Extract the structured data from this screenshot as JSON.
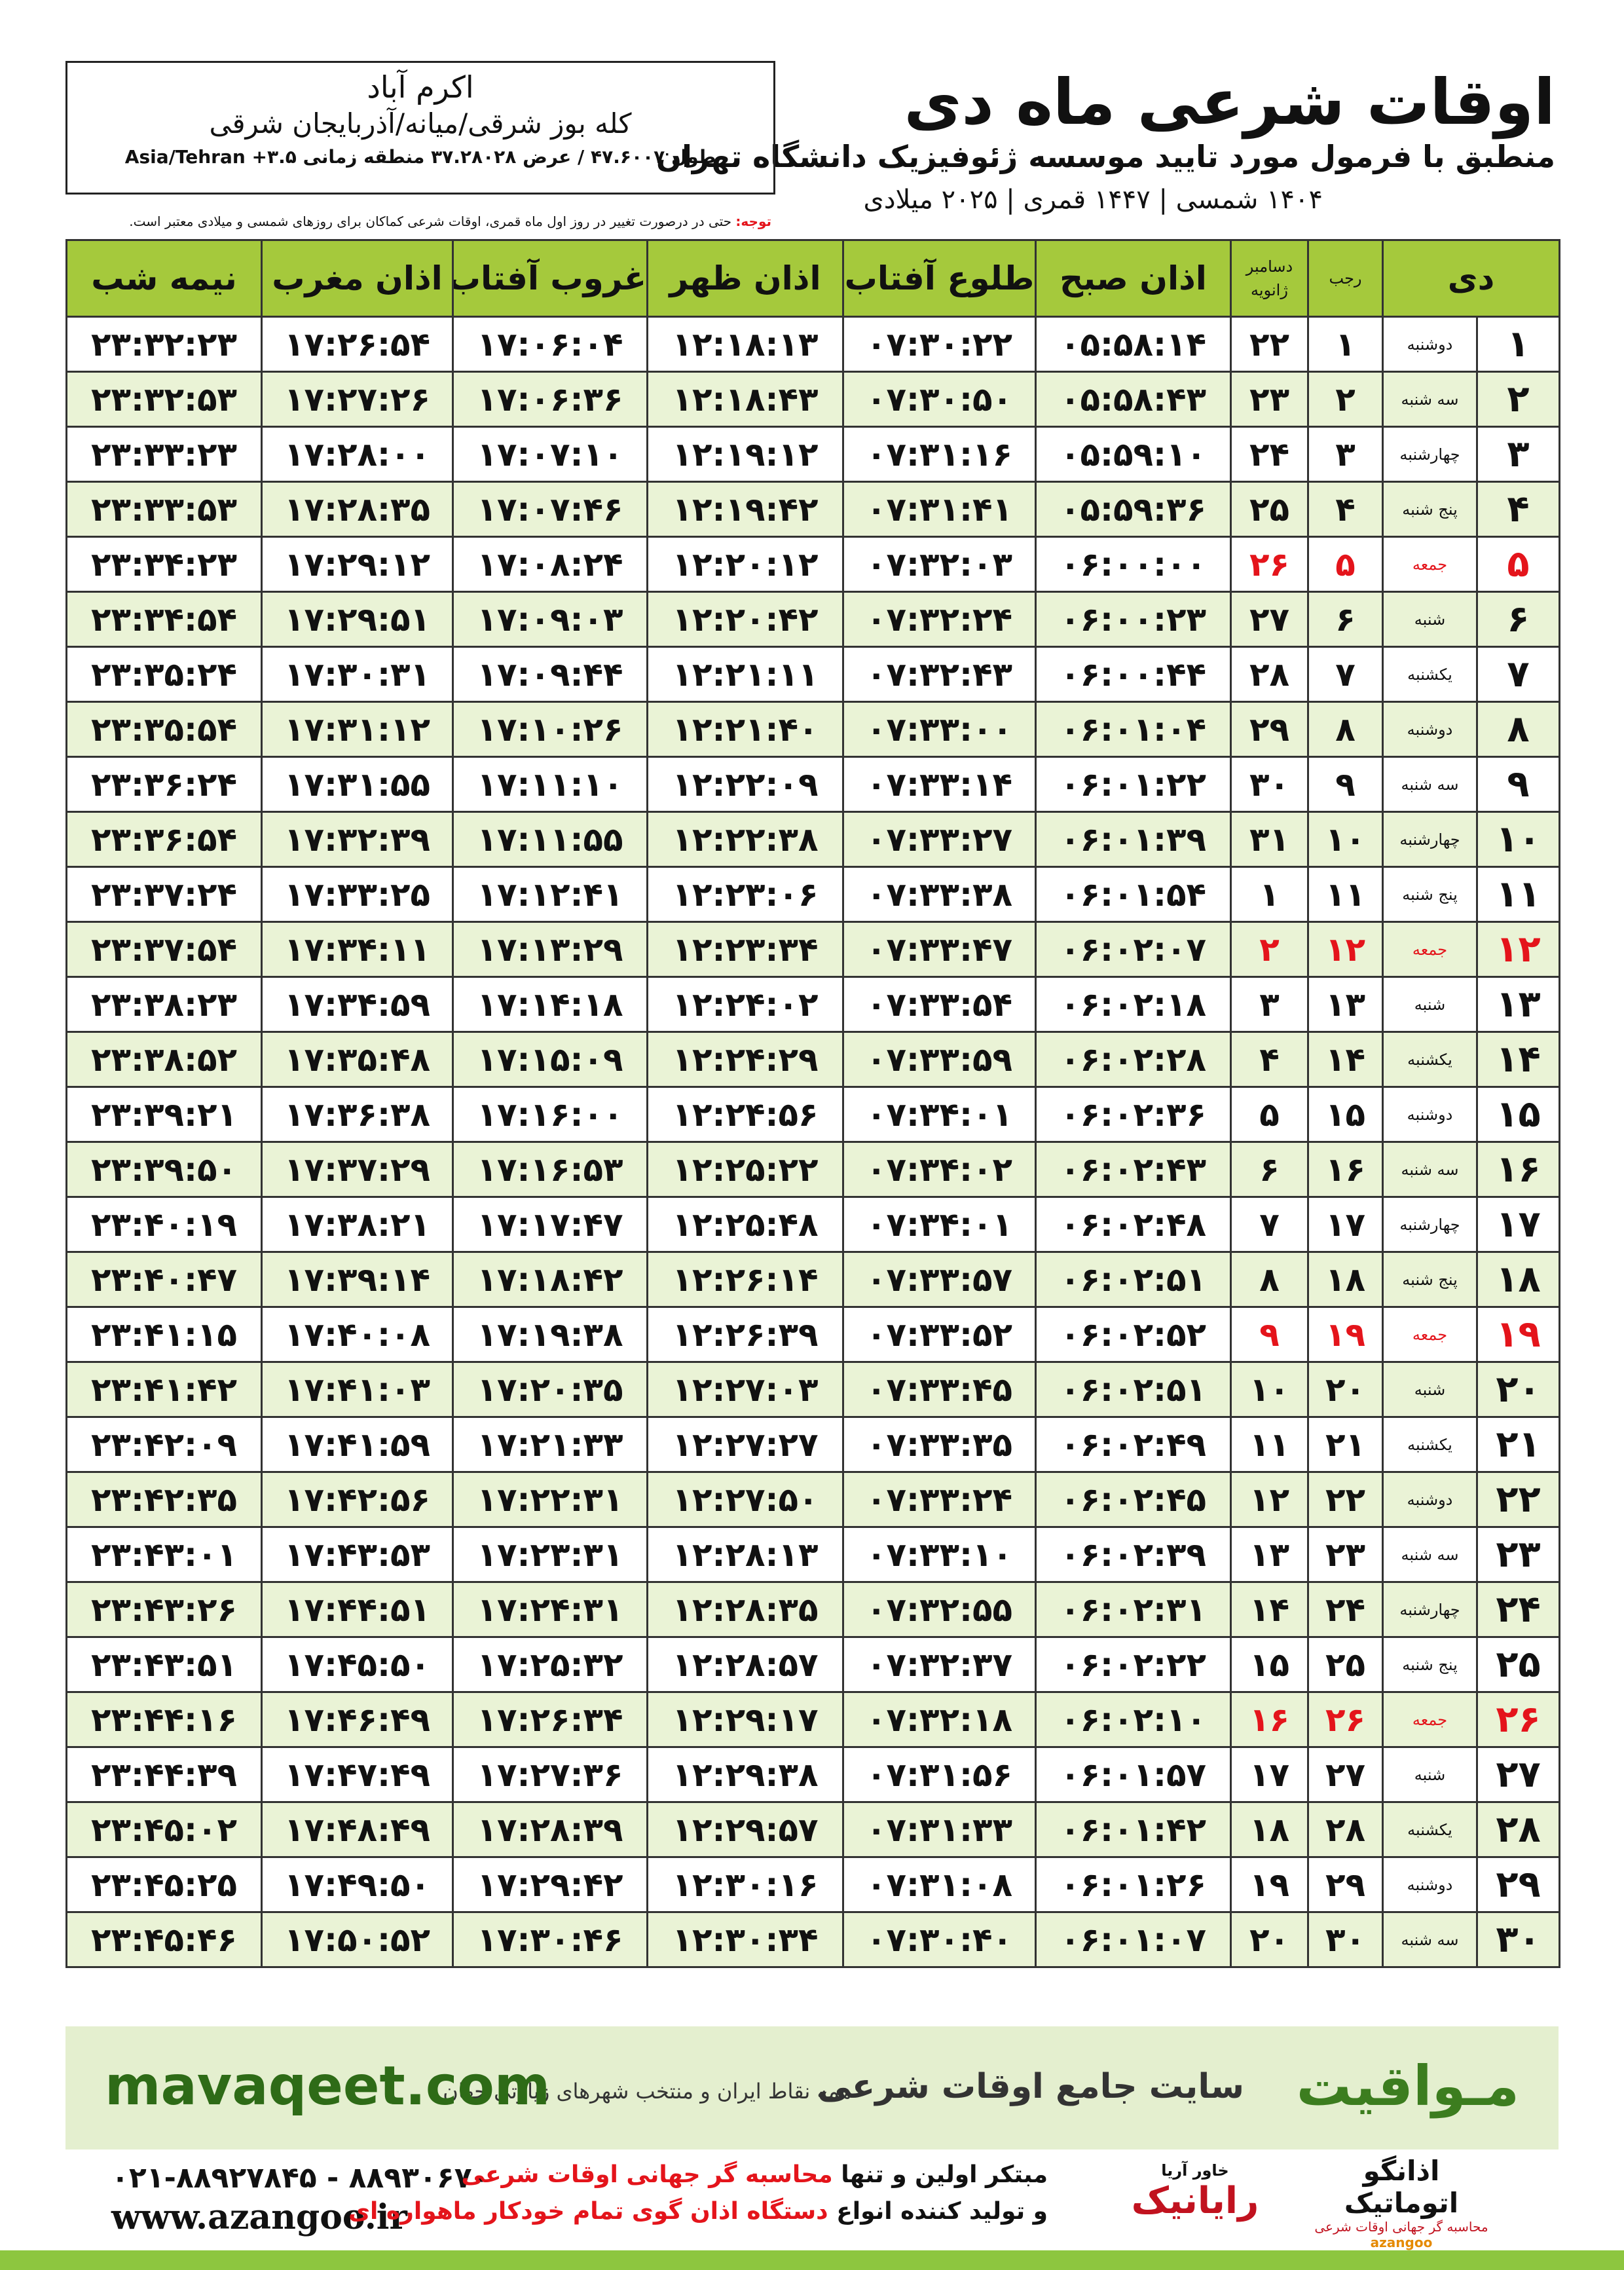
{
  "header": {
    "title": "اوقات شرعی ماه دی",
    "subtitle": "منطبق با فرمول مورد تایید موسسه ژئوفیزیک دانشگاه تهران",
    "date_line": "۱۴۰۴ شمسی | ۱۴۴۷ قمری | ۲۰۲۵ میلادی"
  },
  "location": {
    "city": "اکرم آباد",
    "region": "کله بوز شرقی/میانه/آذربایجان شرقی",
    "coords": "طول ۴۷.۶۰۰۷ / عرض ۳۷.۲۸۰۲۸ منطقه زمانی ۳.۵+ Asia/Tehran"
  },
  "note": {
    "label": "توجه:",
    "text": "حتی در درصورت تغییر در روز اول ماه قمری، اوقات شرعی کماکان برای روزهای شمسی و میلادی معتبر است."
  },
  "table": {
    "holiday_color": "#e4141b",
    "columns": [
      "دی",
      "رجب",
      "دسامبر",
      "ژانویه",
      "اذان صبح",
      "طلوع آفتاب",
      "اذان ظهر",
      "غروب آفتاب",
      "اذان مغرب",
      "نیمه شب"
    ],
    "rows": [
      [
        "۱",
        "دوشنبه",
        "۱",
        "۲۲",
        "۰۵:۵۸:۱۴",
        "۰۷:۳۰:۲۲",
        "۱۲:۱۸:۱۳",
        "۱۷:۰۶:۰۴",
        "۱۷:۲۶:۵۴",
        "۲۳:۳۲:۲۳"
      ],
      [
        "۲",
        "سه شنبه",
        "۲",
        "۲۳",
        "۰۵:۵۸:۴۳",
        "۰۷:۳۰:۵۰",
        "۱۲:۱۸:۴۳",
        "۱۷:۰۶:۳۶",
        "۱۷:۲۷:۲۶",
        "۲۳:۳۲:۵۳"
      ],
      [
        "۳",
        "چهارشنبه",
        "۳",
        "۲۴",
        "۰۵:۵۹:۱۰",
        "۰۷:۳۱:۱۶",
        "۱۲:۱۹:۱۲",
        "۱۷:۰۷:۱۰",
        "۱۷:۲۸:۰۰",
        "۲۳:۳۳:۲۳"
      ],
      [
        "۴",
        "پنج شنبه",
        "۴",
        "۲۵",
        "۰۵:۵۹:۳۶",
        "۰۷:۳۱:۴۱",
        "۱۲:۱۹:۴۲",
        "۱۷:۰۷:۴۶",
        "۱۷:۲۸:۳۵",
        "۲۳:۳۳:۵۳"
      ],
      [
        "۵",
        "جمعه",
        "۵",
        "۲۶",
        "۰۶:۰۰:۰۰",
        "۰۷:۳۲:۰۳",
        "۱۲:۲۰:۱۲",
        "۱۷:۰۸:۲۴",
        "۱۷:۲۹:۱۲",
        "۲۳:۳۴:۲۳"
      ],
      [
        "۶",
        "شنبه",
        "۶",
        "۲۷",
        "۰۶:۰۰:۲۳",
        "۰۷:۳۲:۲۴",
        "۱۲:۲۰:۴۲",
        "۱۷:۰۹:۰۳",
        "۱۷:۲۹:۵۱",
        "۲۳:۳۴:۵۴"
      ],
      [
        "۷",
        "یکشنبه",
        "۷",
        "۲۸",
        "۰۶:۰۰:۴۴",
        "۰۷:۳۲:۴۳",
        "۱۲:۲۱:۱۱",
        "۱۷:۰۹:۴۴",
        "۱۷:۳۰:۳۱",
        "۲۳:۳۵:۲۴"
      ],
      [
        "۸",
        "دوشنبه",
        "۸",
        "۲۹",
        "۰۶:۰۱:۰۴",
        "۰۷:۳۳:۰۰",
        "۱۲:۲۱:۴۰",
        "۱۷:۱۰:۲۶",
        "۱۷:۳۱:۱۲",
        "۲۳:۳۵:۵۴"
      ],
      [
        "۹",
        "سه شنبه",
        "۹",
        "۳۰",
        "۰۶:۰۱:۲۲",
        "۰۷:۳۳:۱۴",
        "۱۲:۲۲:۰۹",
        "۱۷:۱۱:۱۰",
        "۱۷:۳۱:۵۵",
        "۲۳:۳۶:۲۴"
      ],
      [
        "۱۰",
        "چهارشنبه",
        "۱۰",
        "۳۱",
        "۰۶:۰۱:۳۹",
        "۰۷:۳۳:۲۷",
        "۱۲:۲۲:۳۸",
        "۱۷:۱۱:۵۵",
        "۱۷:۳۲:۳۹",
        "۲۳:۳۶:۵۴"
      ],
      [
        "۱۱",
        "پنج شنبه",
        "۱۱",
        "۱",
        "۰۶:۰۱:۵۴",
        "۰۷:۳۳:۳۸",
        "۱۲:۲۳:۰۶",
        "۱۷:۱۲:۴۱",
        "۱۷:۳۳:۲۵",
        "۲۳:۳۷:۲۴"
      ],
      [
        "۱۲",
        "جمعه",
        "۱۲",
        "۲",
        "۰۶:۰۲:۰۷",
        "۰۷:۳۳:۴۷",
        "۱۲:۲۳:۳۴",
        "۱۷:۱۳:۲۹",
        "۱۷:۳۴:۱۱",
        "۲۳:۳۷:۵۴"
      ],
      [
        "۱۳",
        "شنبه",
        "۱۳",
        "۳",
        "۰۶:۰۲:۱۸",
        "۰۷:۳۳:۵۴",
        "۱۲:۲۴:۰۲",
        "۱۷:۱۴:۱۸",
        "۱۷:۳۴:۵۹",
        "۲۳:۳۸:۲۳"
      ],
      [
        "۱۴",
        "یکشنبه",
        "۱۴",
        "۴",
        "۰۶:۰۲:۲۸",
        "۰۷:۳۳:۵۹",
        "۱۲:۲۴:۲۹",
        "۱۷:۱۵:۰۹",
        "۱۷:۳۵:۴۸",
        "۲۳:۳۸:۵۲"
      ],
      [
        "۱۵",
        "دوشنبه",
        "۱۵",
        "۵",
        "۰۶:۰۲:۳۶",
        "۰۷:۳۴:۰۱",
        "۱۲:۲۴:۵۶",
        "۱۷:۱۶:۰۰",
        "۱۷:۳۶:۳۸",
        "۲۳:۳۹:۲۱"
      ],
      [
        "۱۶",
        "سه شنبه",
        "۱۶",
        "۶",
        "۰۶:۰۲:۴۳",
        "۰۷:۳۴:۰۲",
        "۱۲:۲۵:۲۲",
        "۱۷:۱۶:۵۳",
        "۱۷:۳۷:۲۹",
        "۲۳:۳۹:۵۰"
      ],
      [
        "۱۷",
        "چهارشنبه",
        "۱۷",
        "۷",
        "۰۶:۰۲:۴۸",
        "۰۷:۳۴:۰۱",
        "۱۲:۲۵:۴۸",
        "۱۷:۱۷:۴۷",
        "۱۷:۳۸:۲۱",
        "۲۳:۴۰:۱۹"
      ],
      [
        "۱۸",
        "پنج شنبه",
        "۱۸",
        "۸",
        "۰۶:۰۲:۵۱",
        "۰۷:۳۳:۵۷",
        "۱۲:۲۶:۱۴",
        "۱۷:۱۸:۴۲",
        "۱۷:۳۹:۱۴",
        "۲۳:۴۰:۴۷"
      ],
      [
        "۱۹",
        "جمعه",
        "۱۹",
        "۹",
        "۰۶:۰۲:۵۲",
        "۰۷:۳۳:۵۲",
        "۱۲:۲۶:۳۹",
        "۱۷:۱۹:۳۸",
        "۱۷:۴۰:۰۸",
        "۲۳:۴۱:۱۵"
      ],
      [
        "۲۰",
        "شنبه",
        "۲۰",
        "۱۰",
        "۰۶:۰۲:۵۱",
        "۰۷:۳۳:۴۵",
        "۱۲:۲۷:۰۳",
        "۱۷:۲۰:۳۵",
        "۱۷:۴۱:۰۳",
        "۲۳:۴۱:۴۲"
      ],
      [
        "۲۱",
        "یکشنبه",
        "۲۱",
        "۱۱",
        "۰۶:۰۲:۴۹",
        "۰۷:۳۳:۳۵",
        "۱۲:۲۷:۲۷",
        "۱۷:۲۱:۳۳",
        "۱۷:۴۱:۵۹",
        "۲۳:۴۲:۰۹"
      ],
      [
        "۲۲",
        "دوشنبه",
        "۲۲",
        "۱۲",
        "۰۶:۰۲:۴۵",
        "۰۷:۳۳:۲۴",
        "۱۲:۲۷:۵۰",
        "۱۷:۲۲:۳۱",
        "۱۷:۴۲:۵۶",
        "۲۳:۴۲:۳۵"
      ],
      [
        "۲۳",
        "سه شنبه",
        "۲۳",
        "۱۳",
        "۰۶:۰۲:۳۹",
        "۰۷:۳۳:۱۰",
        "۱۲:۲۸:۱۳",
        "۱۷:۲۳:۳۱",
        "۱۷:۴۳:۵۳",
        "۲۳:۴۳:۰۱"
      ],
      [
        "۲۴",
        "چهارشنبه",
        "۲۴",
        "۱۴",
        "۰۶:۰۲:۳۱",
        "۰۷:۳۲:۵۵",
        "۱۲:۲۸:۳۵",
        "۱۷:۲۴:۳۱",
        "۱۷:۴۴:۵۱",
        "۲۳:۴۳:۲۶"
      ],
      [
        "۲۵",
        "پنج شنبه",
        "۲۵",
        "۱۵",
        "۰۶:۰۲:۲۲",
        "۰۷:۳۲:۳۷",
        "۱۲:۲۸:۵۷",
        "۱۷:۲۵:۳۲",
        "۱۷:۴۵:۵۰",
        "۲۳:۴۳:۵۱"
      ],
      [
        "۲۶",
        "جمعه",
        "۲۶",
        "۱۶",
        "۰۶:۰۲:۱۰",
        "۰۷:۳۲:۱۸",
        "۱۲:۲۹:۱۷",
        "۱۷:۲۶:۳۴",
        "۱۷:۴۶:۴۹",
        "۲۳:۴۴:۱۶"
      ],
      [
        "۲۷",
        "شنبه",
        "۲۷",
        "۱۷",
        "۰۶:۰۱:۵۷",
        "۰۷:۳۱:۵۶",
        "۱۲:۲۹:۳۸",
        "۱۷:۲۷:۳۶",
        "۱۷:۴۷:۴۹",
        "۲۳:۴۴:۳۹"
      ],
      [
        "۲۸",
        "یکشنبه",
        "۲۸",
        "۱۸",
        "۰۶:۰۱:۴۲",
        "۰۷:۳۱:۳۳",
        "۱۲:۲۹:۵۷",
        "۱۷:۲۸:۳۹",
        "۱۷:۴۸:۴۹",
        "۲۳:۴۵:۰۲"
      ],
      [
        "۲۹",
        "دوشنبه",
        "۲۹",
        "۱۹",
        "۰۶:۰۱:۲۶",
        "۰۷:۳۱:۰۸",
        "۱۲:۳۰:۱۶",
        "۱۷:۲۹:۴۲",
        "۱۷:۴۹:۵۰",
        "۲۳:۴۵:۲۵"
      ],
      [
        "۳۰",
        "سه شنبه",
        "۳۰",
        "۲۰",
        "۰۶:۰۱:۰۷",
        "۰۷:۳۰:۴۰",
        "۱۲:۳۰:۳۴",
        "۱۷:۳۰:۴۶",
        "۱۷:۵۰:۵۲",
        "۲۳:۴۵:۴۶"
      ]
    ]
  },
  "banner": {
    "brand": "مـواقیت",
    "tagline": "سایت جامع اوقات شرعی",
    "subtitle": "همه نقاط ایران و منتخب شهرهای زیارتی جهان",
    "site": "mavaqeet.com"
  },
  "contact": {
    "phones": "۰۲۱-۸۸۹۲۷۸۴۵ - ۸۸۹۳۰۶۷۰",
    "web": "www.azangoo.ir",
    "line1_a": "مبتکر اولین و تنها",
    "line1_b": "محاسبه گر جهانی اوقات شرعی",
    "line2_a": "و تولید کننده انواع",
    "line2_b": "دستگاه اذان گوی تمام خودکار ماهواره ای"
  },
  "logos": {
    "rayanik": "رایانیک",
    "rayanik_sub": "خاور آریا",
    "azangoo": "اذانگو اتوماتیک",
    "azangoo_sub": "محاسبه گر جهانی اوقات شرعی",
    "azangoo_en": "azangoo"
  }
}
